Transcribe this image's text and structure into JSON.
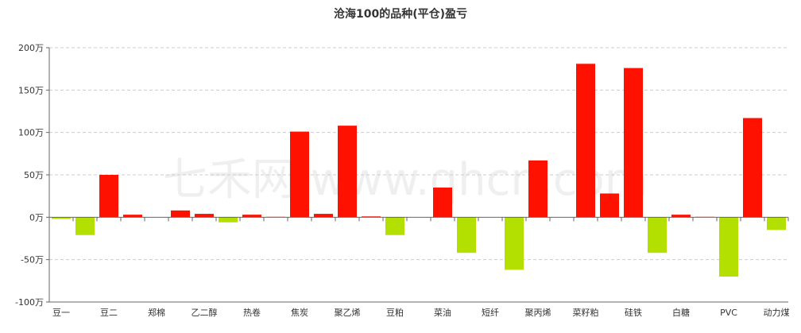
{
  "chart_data": {
    "type": "bar",
    "title": "沧海100的品种(平仓)盈亏",
    "ylim": [
      -100,
      200
    ],
    "yticks": [
      200,
      150,
      100,
      50,
      0,
      -50,
      -100
    ],
    "yunit": "万",
    "grid": true,
    "watermark": "七禾网 www.qhcn.com",
    "colors": {
      "positive": "#ff1100",
      "negative": "#b3e000",
      "text": "#333333",
      "grid": "#cccccc"
    },
    "categories": [
      "豆一",
      "",
      "豆二",
      "",
      "郑棉",
      "",
      "乙二醇",
      "",
      "热卷",
      "",
      "焦炭",
      "",
      "聚乙烯",
      "",
      "豆粕",
      "",
      "菜油",
      "",
      "短纤",
      "",
      "聚丙烯",
      "",
      "菜籽粕",
      "",
      "硅铁",
      "",
      "白糖",
      "",
      "PVC",
      "",
      "动力煤"
    ],
    "values": [
      -2,
      -21,
      50,
      3,
      0,
      8,
      4,
      -6,
      3,
      0.5,
      101,
      4,
      108,
      1,
      -21,
      0,
      35,
      -42,
      0,
      -62,
      67,
      0,
      181,
      28,
      176,
      -42,
      3,
      0.5,
      -70,
      117,
      -15
    ]
  }
}
